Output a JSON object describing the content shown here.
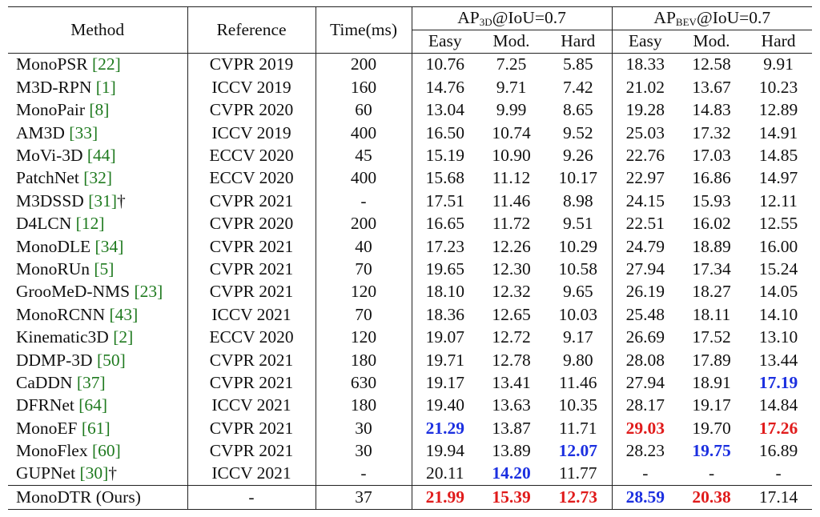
{
  "header": {
    "method": "Method",
    "reference": "Reference",
    "time": "Time(ms)",
    "ap3d_prefix": "AP",
    "ap3d_sub": "3D",
    "ap3d_suffix": "@IoU=0.7",
    "apbev_prefix": "AP",
    "apbev_sub": "BEV",
    "apbev_suffix": "@IoU=0.7",
    "easy": "Easy",
    "mod": "Mod.",
    "hard": "Hard"
  },
  "colors": {
    "best": "#e01b1b",
    "second": "#1b2fe0",
    "citation": "#1f7a1f"
  },
  "rows": [
    {
      "name": "MonoPSR",
      "cite": "[22]",
      "mark": "",
      "ref": "CVPR 2019",
      "time": "200",
      "v": [
        "10.76",
        "7.25",
        "5.85",
        "18.33",
        "12.58",
        "9.91"
      ],
      "hl": [
        "",
        "",
        "",
        "",
        "",
        ""
      ]
    },
    {
      "name": "M3D-RPN",
      "cite": "[1]",
      "mark": "",
      "ref": "ICCV 2019",
      "time": "160",
      "v": [
        "14.76",
        "9.71",
        "7.42",
        "21.02",
        "13.67",
        "10.23"
      ],
      "hl": [
        "",
        "",
        "",
        "",
        "",
        ""
      ]
    },
    {
      "name": "MonoPair",
      "cite": "[8]",
      "mark": "",
      "ref": "CVPR 2020",
      "time": "60",
      "v": [
        "13.04",
        "9.99",
        "8.65",
        "19.28",
        "14.83",
        "12.89"
      ],
      "hl": [
        "",
        "",
        "",
        "",
        "",
        ""
      ]
    },
    {
      "name": "AM3D",
      "cite": "[33]",
      "mark": "",
      "ref": "ICCV 2019",
      "time": "400",
      "v": [
        "16.50",
        "10.74",
        "9.52",
        "25.03",
        "17.32",
        "14.91"
      ],
      "hl": [
        "",
        "",
        "",
        "",
        "",
        ""
      ]
    },
    {
      "name": "MoVi-3D",
      "cite": "[44]",
      "mark": "",
      "ref": "ECCV 2020",
      "time": "45",
      "v": [
        "15.19",
        "10.90",
        "9.26",
        "22.76",
        "17.03",
        "14.85"
      ],
      "hl": [
        "",
        "",
        "",
        "",
        "",
        ""
      ]
    },
    {
      "name": "PatchNet",
      "cite": "[32]",
      "mark": "",
      "ref": "ECCV 2020",
      "time": "400",
      "v": [
        "15.68",
        "11.12",
        "10.17",
        "22.97",
        "16.86",
        "14.97"
      ],
      "hl": [
        "",
        "",
        "",
        "",
        "",
        ""
      ]
    },
    {
      "name": "M3DSSD",
      "cite": "[31]",
      "mark": "†",
      "ref": "CVPR 2021",
      "time": "-",
      "v": [
        "17.51",
        "11.46",
        "8.98",
        "24.15",
        "15.93",
        "12.11"
      ],
      "hl": [
        "",
        "",
        "",
        "",
        "",
        ""
      ]
    },
    {
      "name": "D4LCN",
      "cite": "[12]",
      "mark": "",
      "ref": "CVPR 2020",
      "time": "200",
      "v": [
        "16.65",
        "11.72",
        "9.51",
        "22.51",
        "16.02",
        "12.55"
      ],
      "hl": [
        "",
        "",
        "",
        "",
        "",
        ""
      ]
    },
    {
      "name": "MonoDLE",
      "cite": "[34]",
      "mark": "",
      "ref": "CVPR 2021",
      "time": "40",
      "v": [
        "17.23",
        "12.26",
        "10.29",
        "24.79",
        "18.89",
        "16.00"
      ],
      "hl": [
        "",
        "",
        "",
        "",
        "",
        ""
      ]
    },
    {
      "name": "MonoRUn",
      "cite": "[5]",
      "mark": "",
      "ref": "CVPR 2021",
      "time": "70",
      "v": [
        "19.65",
        "12.30",
        "10.58",
        "27.94",
        "17.34",
        "15.24"
      ],
      "hl": [
        "",
        "",
        "",
        "",
        "",
        ""
      ]
    },
    {
      "name": "GrooMeD-NMS",
      "cite": "[23]",
      "mark": "",
      "ref": "CVPR 2021",
      "time": "120",
      "v": [
        "18.10",
        "12.32",
        "9.65",
        "26.19",
        "18.27",
        "14.05"
      ],
      "hl": [
        "",
        "",
        "",
        "",
        "",
        ""
      ]
    },
    {
      "name": "MonoRCNN",
      "cite": "[43]",
      "mark": "",
      "ref": "ICCV 2021",
      "time": "70",
      "v": [
        "18.36",
        "12.65",
        "10.03",
        "25.48",
        "18.11",
        "14.10"
      ],
      "hl": [
        "",
        "",
        "",
        "",
        "",
        ""
      ]
    },
    {
      "name": "Kinematic3D",
      "cite": "[2]",
      "mark": "",
      "ref": "ECCV 2020",
      "time": "120",
      "v": [
        "19.07",
        "12.72",
        "9.17",
        "26.69",
        "17.52",
        "13.10"
      ],
      "hl": [
        "",
        "",
        "",
        "",
        "",
        ""
      ]
    },
    {
      "name": "DDMP-3D",
      "cite": "[50]",
      "mark": "",
      "ref": "CVPR 2021",
      "time": "180",
      "v": [
        "19.71",
        "12.78",
        "9.80",
        "28.08",
        "17.89",
        "13.44"
      ],
      "hl": [
        "",
        "",
        "",
        "",
        "",
        ""
      ]
    },
    {
      "name": "CaDDN",
      "cite": "[37]",
      "mark": "",
      "ref": "CVPR 2021",
      "time": "630",
      "v": [
        "19.17",
        "13.41",
        "11.46",
        "27.94",
        "18.91",
        "17.19"
      ],
      "hl": [
        "",
        "",
        "",
        "",
        "",
        "second"
      ]
    },
    {
      "name": "DFRNet",
      "cite": "[64]",
      "mark": "",
      "ref": "ICCV 2021",
      "time": "180",
      "v": [
        "19.40",
        "13.63",
        "10.35",
        "28.17",
        "19.17",
        "14.84"
      ],
      "hl": [
        "",
        "",
        "",
        "",
        "",
        ""
      ]
    },
    {
      "name": "MonoEF",
      "cite": "[61]",
      "mark": "",
      "ref": "CVPR 2021",
      "time": "30",
      "v": [
        "21.29",
        "13.87",
        "11.71",
        "29.03",
        "19.70",
        "17.26"
      ],
      "hl": [
        "second",
        "",
        "",
        "best",
        "",
        "best"
      ]
    },
    {
      "name": "MonoFlex",
      "cite": "[60]",
      "mark": "",
      "ref": "CVPR 2021",
      "time": "30",
      "v": [
        "19.94",
        "13.89",
        "12.07",
        "28.23",
        "19.75",
        "16.89"
      ],
      "hl": [
        "",
        "",
        "second",
        "",
        "second",
        ""
      ]
    },
    {
      "name": "GUPNet",
      "cite": "[30]",
      "mark": "†",
      "ref": "ICCV 2021",
      "time": "-",
      "v": [
        "20.11",
        "14.20",
        "11.77",
        "-",
        "-",
        "-"
      ],
      "hl": [
        "",
        "second",
        "",
        "",
        "",
        ""
      ]
    }
  ],
  "ours": {
    "name": "MonoDTR (Ours)",
    "ref": "-",
    "time": "37",
    "v": [
      "21.99",
      "15.39",
      "12.73",
      "28.59",
      "20.38",
      "17.14"
    ],
    "hl": [
      "best",
      "best",
      "best",
      "second",
      "best",
      ""
    ]
  }
}
